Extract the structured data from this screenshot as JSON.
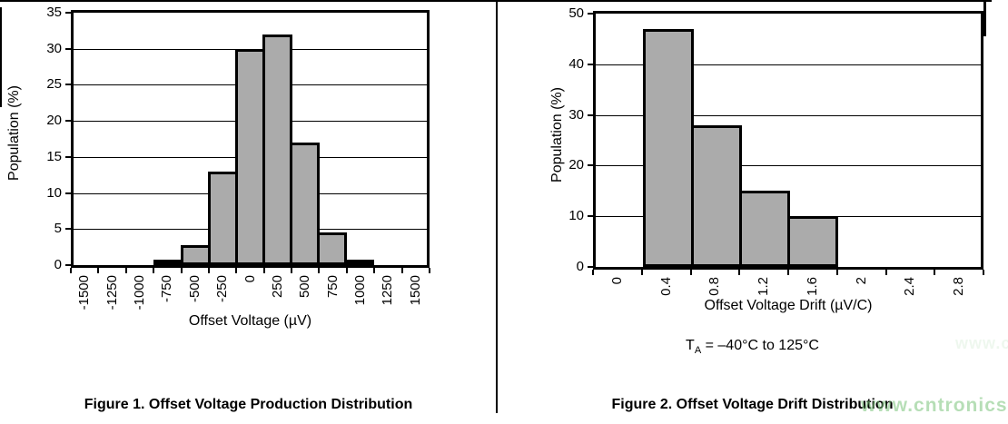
{
  "chart_data": [
    {
      "type": "bar",
      "title": "Figure 1. Offset Voltage Production Distribution",
      "xlabel": "Offset Voltage (µV)",
      "ylabel": "Population (%)",
      "categories": [
        "-1500",
        "-1250",
        "-1000",
        "-750",
        "-500",
        "-250",
        "0",
        "250",
        "500",
        "750",
        "1000",
        "1250",
        "1500"
      ],
      "values": [
        0,
        0,
        0,
        0.2,
        2.8,
        13,
        30,
        32,
        17,
        4.5,
        0.5,
        0,
        0
      ],
      "ylim": [
        0,
        35
      ],
      "yticks": [
        0,
        5,
        10,
        15,
        20,
        25,
        30,
        35
      ],
      "grid": "horizontal",
      "legend": "none"
    },
    {
      "type": "bar",
      "title": "Figure 2. Offset Voltage Drift Distribution",
      "xlabel": "Offset Voltage Drift (µV/C)",
      "ylabel": "Population (%)",
      "categories": [
        "0",
        "0.4",
        "0.8",
        "1.2",
        "1.6",
        "2",
        "2.4",
        "2.8"
      ],
      "values": [
        0,
        47,
        28,
        15,
        10,
        0,
        0,
        0
      ],
      "ylim": [
        0,
        50
      ],
      "yticks": [
        0,
        10,
        20,
        30,
        40,
        50
      ],
      "grid": "horizontal",
      "legend": "none",
      "condition_pre": "T",
      "condition_sub": "A",
      "condition_post": " = –40°C to 125°C"
    }
  ],
  "watermark": {
    "text": "www.cntronics.com",
    "color": "#7cc47c"
  },
  "colors": {
    "bar_fill": "#ababab",
    "line": "#000000"
  }
}
